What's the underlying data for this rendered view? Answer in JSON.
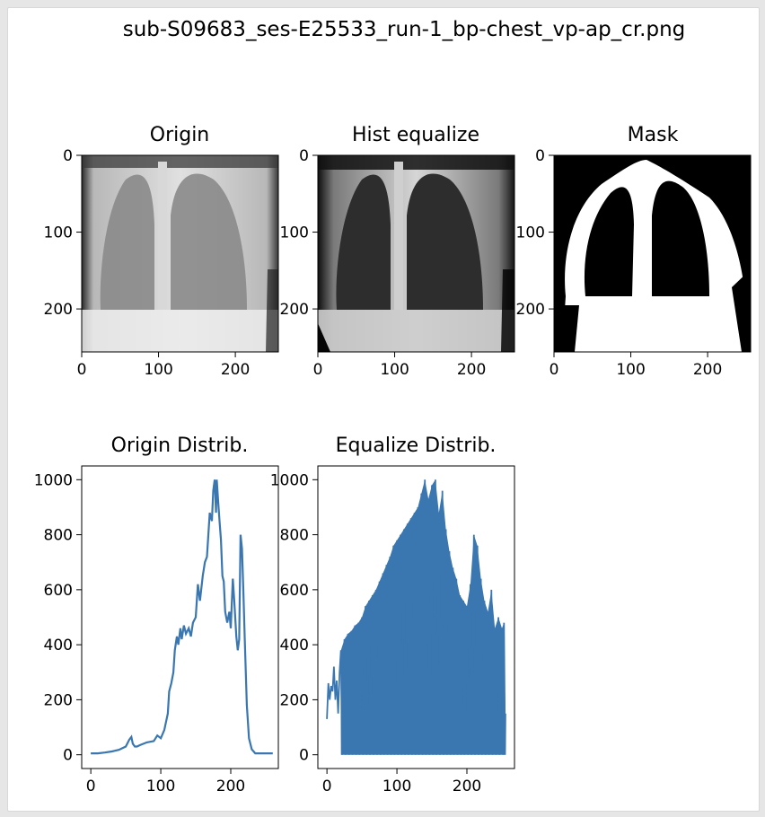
{
  "figure": {
    "title": "sub-S09683_ses-E25533_run-1_bp-chest_vp-ap_cr.png"
  },
  "colors": {
    "line": "#3a76b0",
    "axes": "#000000",
    "background": "#ffffff"
  },
  "chart_data": [
    {
      "type": "image",
      "title": "Origin",
      "content": "chest x-ray (original)",
      "xticks": [
        0,
        100,
        200
      ],
      "yticks": [
        0,
        100,
        200
      ],
      "xlim": [
        0,
        256
      ],
      "ylim": [
        256,
        0
      ]
    },
    {
      "type": "image",
      "title": "Hist equalize",
      "content": "chest x-ray (histogram equalized)",
      "xticks": [
        0,
        100,
        200
      ],
      "yticks": [
        0,
        100,
        200
      ],
      "xlim": [
        0,
        256
      ],
      "ylim": [
        256,
        0
      ]
    },
    {
      "type": "image",
      "title": "Mask",
      "content": "binary lung mask",
      "xticks": [
        0,
        100,
        200
      ],
      "yticks": [
        0,
        100,
        200
      ],
      "xlim": [
        0,
        256
      ],
      "ylim": [
        256,
        0
      ]
    },
    {
      "type": "line",
      "title": "Origin Distrib.",
      "xticks": [
        0,
        100,
        200
      ],
      "yticks": [
        0,
        200,
        400,
        600,
        800,
        1000
      ],
      "xlim": [
        -13,
        268
      ],
      "ylim": [
        -50,
        1050
      ],
      "series": [
        {
          "x": [
            0,
            10,
            20,
            30,
            40,
            50,
            55,
            58,
            60,
            63,
            66,
            70,
            80,
            90,
            95,
            100,
            105,
            110,
            112,
            115,
            118,
            120,
            123,
            125,
            128,
            130,
            133,
            136,
            140,
            143,
            146,
            150,
            153,
            156,
            160,
            163,
            166,
            170,
            173,
            175,
            177,
            179,
            180,
            182,
            184,
            186,
            188,
            190,
            192,
            195,
            198,
            200,
            203,
            205,
            208,
            210,
            212,
            214,
            216,
            218,
            220,
            223,
            226,
            230,
            235,
            240,
            245,
            250,
            255,
            260
          ],
          "y": [
            5,
            5,
            8,
            12,
            18,
            30,
            55,
            65,
            40,
            30,
            30,
            35,
            45,
            50,
            70,
            60,
            90,
            150,
            230,
            260,
            300,
            380,
            430,
            400,
            460,
            420,
            470,
            440,
            460,
            430,
            480,
            500,
            620,
            560,
            650,
            700,
            720,
            880,
            850,
            960,
            1000,
            880,
            1000,
            920,
            850,
            780,
            650,
            630,
            520,
            480,
            520,
            460,
            640,
            560,
            430,
            380,
            420,
            800,
            750,
            600,
            420,
            180,
            60,
            20,
            5,
            5,
            5,
            5,
            5,
            5
          ]
        }
      ]
    },
    {
      "type": "line",
      "title": "Equalize Distrib.",
      "xticks": [
        0,
        100,
        200
      ],
      "yticks": [
        0,
        200,
        400,
        600,
        800,
        1000
      ],
      "xlim": [
        -13,
        268
      ],
      "ylim": [
        -50,
        1050
      ],
      "series": [
        {
          "x": [
            0,
            2,
            4,
            6,
            8,
            10,
            12,
            14,
            16,
            18,
            20,
            25,
            30,
            35,
            40,
            45,
            50,
            55,
            60,
            65,
            70,
            75,
            80,
            85,
            90,
            95,
            100,
            105,
            110,
            115,
            120,
            125,
            130,
            135,
            140,
            145,
            150,
            155,
            160,
            165,
            170,
            175,
            180,
            185,
            190,
            195,
            200,
            205,
            210,
            215,
            220,
            225,
            230,
            235,
            240,
            245,
            250,
            253,
            255
          ],
          "y": [
            130,
            260,
            200,
            250,
            230,
            320,
            200,
            270,
            150,
            300,
            380,
            420,
            440,
            450,
            470,
            480,
            500,
            540,
            560,
            580,
            600,
            630,
            660,
            690,
            720,
            760,
            780,
            800,
            820,
            840,
            860,
            880,
            900,
            950,
            1000,
            930,
            980,
            1000,
            880,
            960,
            820,
            740,
            680,
            640,
            580,
            560,
            540,
            620,
            800,
            760,
            640,
            560,
            520,
            600,
            460,
            500,
            460,
            480,
            150
          ]
        }
      ]
    }
  ]
}
